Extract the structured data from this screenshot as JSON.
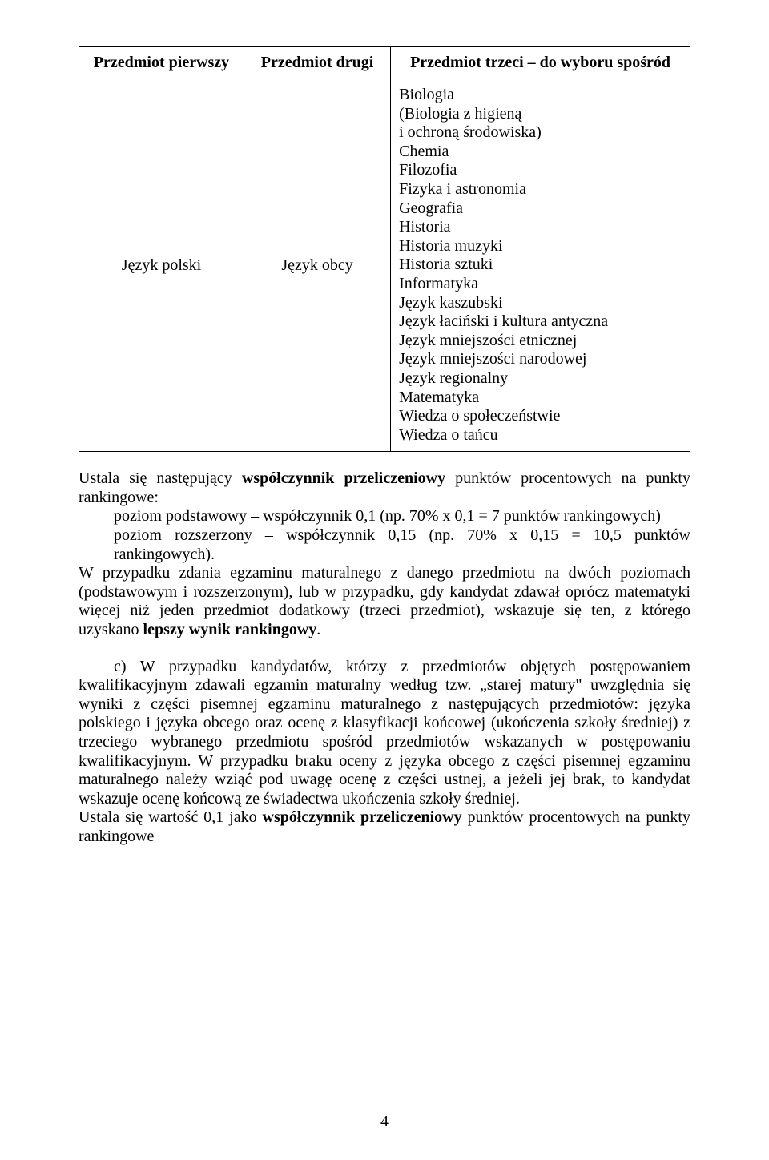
{
  "table": {
    "headers": [
      "Przedmiot pierwszy",
      "Przedmiot drugi",
      "Przedmiot trzeci – do wyboru spośród"
    ],
    "col1_value": "Język polski",
    "col2_value": "Język obcy",
    "col3_lines": [
      "Biologia",
      "(Biologia z higieną",
      "i ochroną środowiska)",
      "Chemia",
      "Filozofia",
      "Fizyka i astronomia",
      "Geografia",
      "Historia",
      "Historia muzyki",
      "Historia sztuki",
      "Informatyka",
      "Język kaszubski",
      "Język łaciński i kultura antyczna",
      "Język mniejszości etnicznej",
      "Język mniejszości narodowej",
      "Język regionalny",
      "Matematyka",
      "Wiedza o społeczeństwie",
      "Wiedza o tańcu"
    ]
  },
  "para1": {
    "lead1": "Ustala się następujący ",
    "bold1": "współczynnik przeliczeniowy",
    "tail1": " punktów procentowych na punkty rankingowe:",
    "line2": "poziom podstawowy – współczynnik 0,1 (np. 70% x 0,1 = 7 punktów rankingowych)",
    "line3": "poziom rozszerzony – współczynnik 0,15 (np. 70% x 0,15 = 10,5 punktów rankingowych).",
    "body": "W przypadku zdania egzaminu maturalnego z danego przedmiotu na dwóch poziomach (podstawowym i rozszerzonym), lub w przypadku, gdy kandydat zdawał oprócz matematyki więcej niż jeden przedmiot dodatkowy (trzeci przedmiot), wskazuje się ten, z którego uzyskano ",
    "bold2": "lepszy wynik rankingowy",
    "dot": "."
  },
  "para2": {
    "lead": "c) W przypadku kandydatów, którzy z przedmiotów objętych postępowaniem kwalifikacyjnym zdawali egzamin maturalny według tzw. „starej matury\" uwzględnia się wyniki z części pisemnej egzaminu maturalnego z następujących przedmiotów: języka polskiego i języka obcego oraz ocenę z klasyfikacji końcowej (ukończenia szkoły średniej) z trzeciego wybranego przedmiotu spośród przedmiotów wskazanych w postępowaniu kwalifikacyjnym. W przypadku braku oceny z języka obcego z części pisemnej egzaminu maturalnego należy wziąć pod uwagę ocenę z części ustnej, a jeżeli jej brak, to kandydat wskazuje ocenę końcową ze świadectwa ukończenia szkoły średniej.",
    "line2a": "Ustala się wartość 0,1 jako ",
    "line2b": "współczynnik przeliczeniowy",
    "line2c": " punktów procentowych na punkty rankingowe"
  },
  "page_number": "4"
}
